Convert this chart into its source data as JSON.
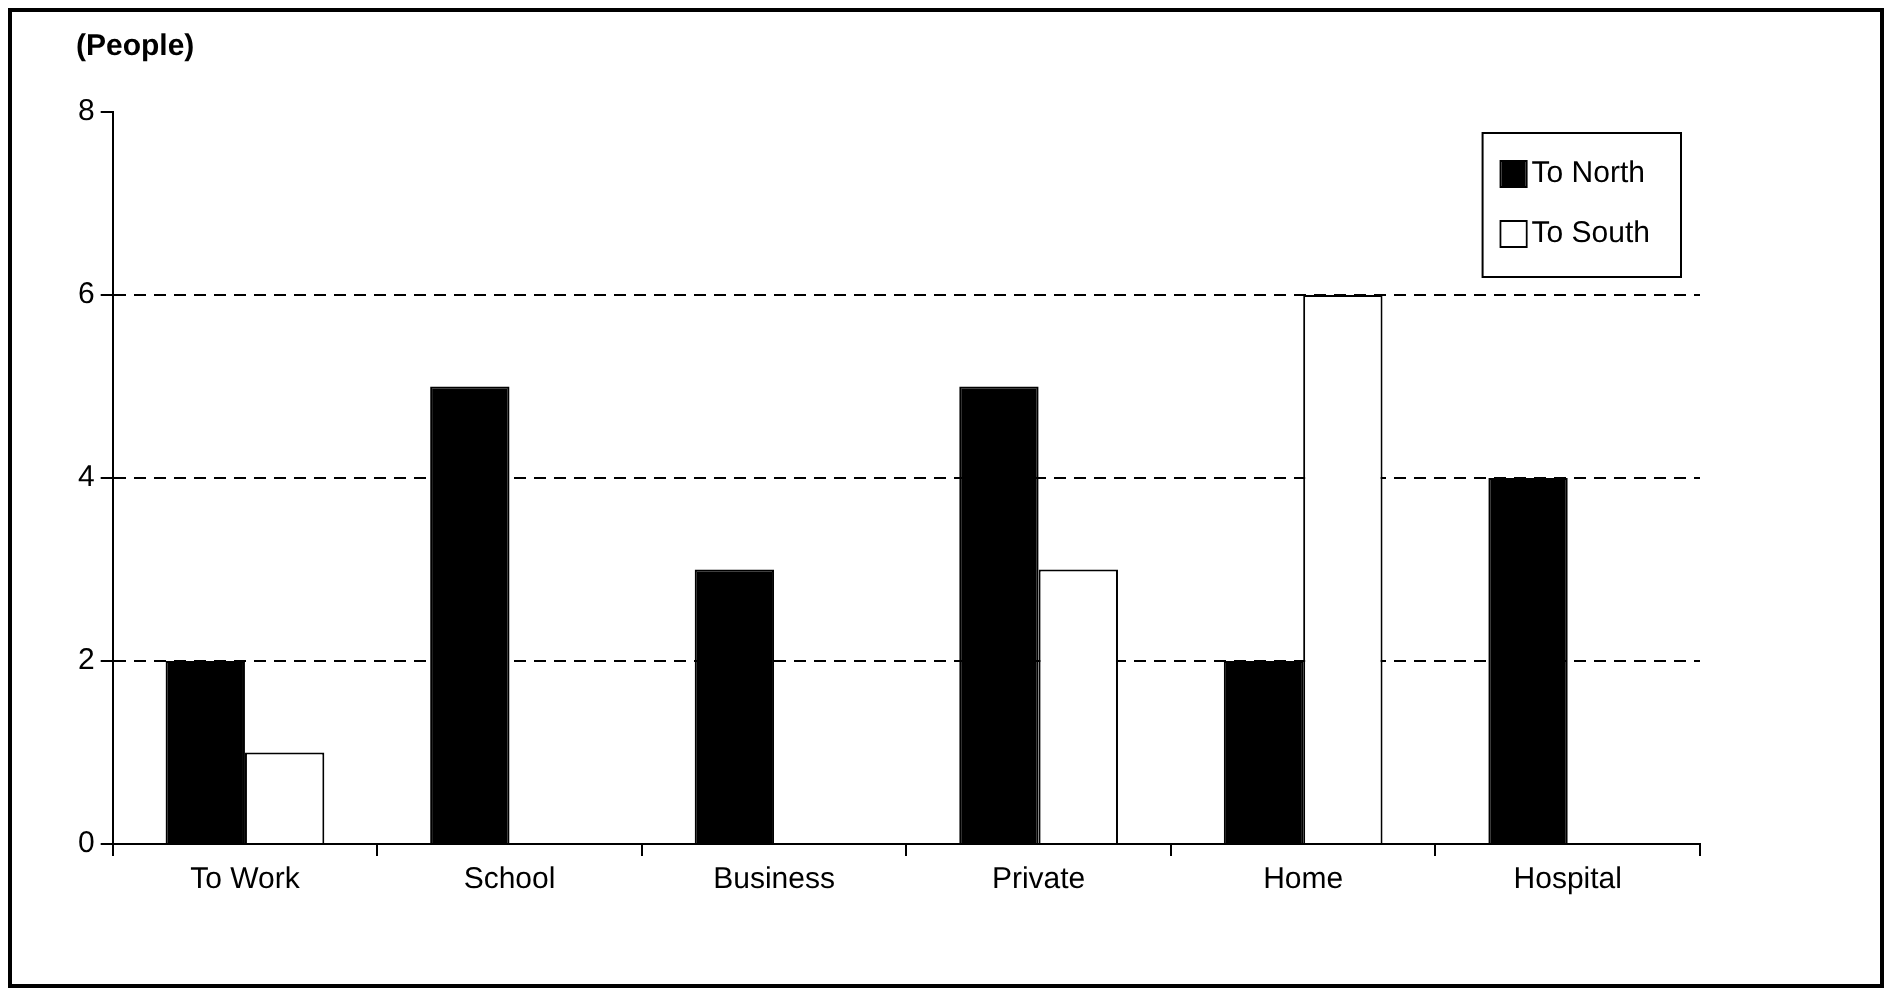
{
  "chart_data": {
    "type": "bar",
    "ylabel": "(People)",
    "categories": [
      "To Work",
      "School",
      "Business",
      "Private",
      "Home",
      "Hospital"
    ],
    "series": [
      {
        "name": "To North",
        "color": "#000000",
        "values": [
          2,
          5,
          3,
          5,
          2,
          4
        ]
      },
      {
        "name": "To South",
        "color": "#ffffff",
        "values": [
          1,
          0,
          0,
          3,
          6,
          0
        ]
      }
    ],
    "ylim": [
      0,
      8
    ],
    "yticks": [
      0,
      2,
      4,
      6,
      8
    ],
    "grid": "y",
    "line_style": "dashed",
    "legend": "top right"
  }
}
